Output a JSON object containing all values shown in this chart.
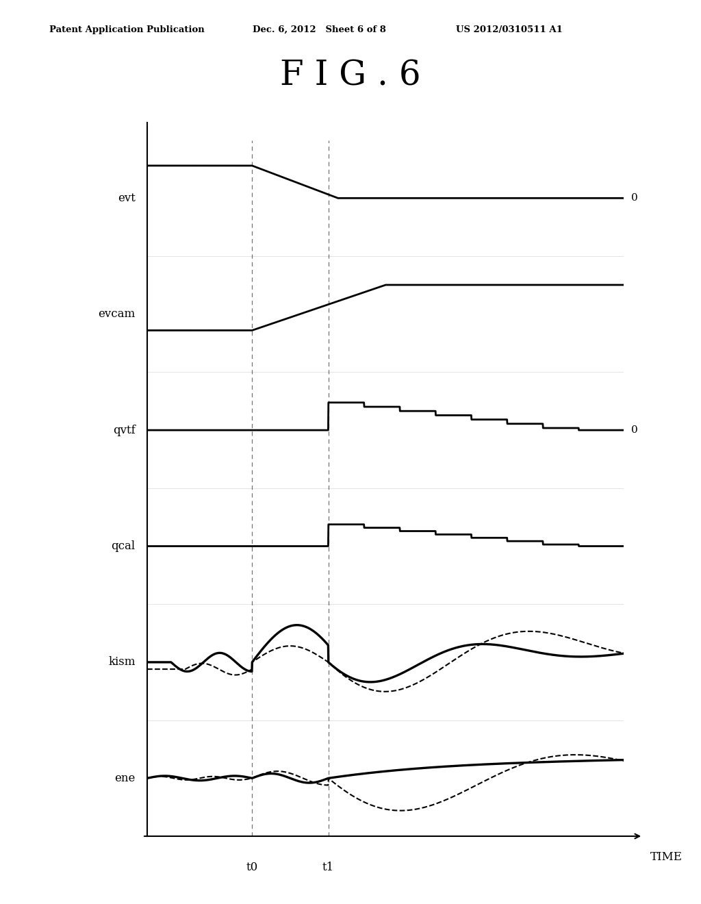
{
  "title": "F I G . 6",
  "header_left": "Patent Application Publication",
  "header_mid": "Dec. 6, 2012   Sheet 6 of 8",
  "header_right": "US 2012/0310511 A1",
  "xlabel": "TIME",
  "t0": 0.22,
  "t1": 0.38,
  "background_color": "#ffffff",
  "line_color": "#000000",
  "signals": [
    "evt",
    "evcam",
    "qvtf",
    "qcal",
    "kism",
    "ene"
  ]
}
